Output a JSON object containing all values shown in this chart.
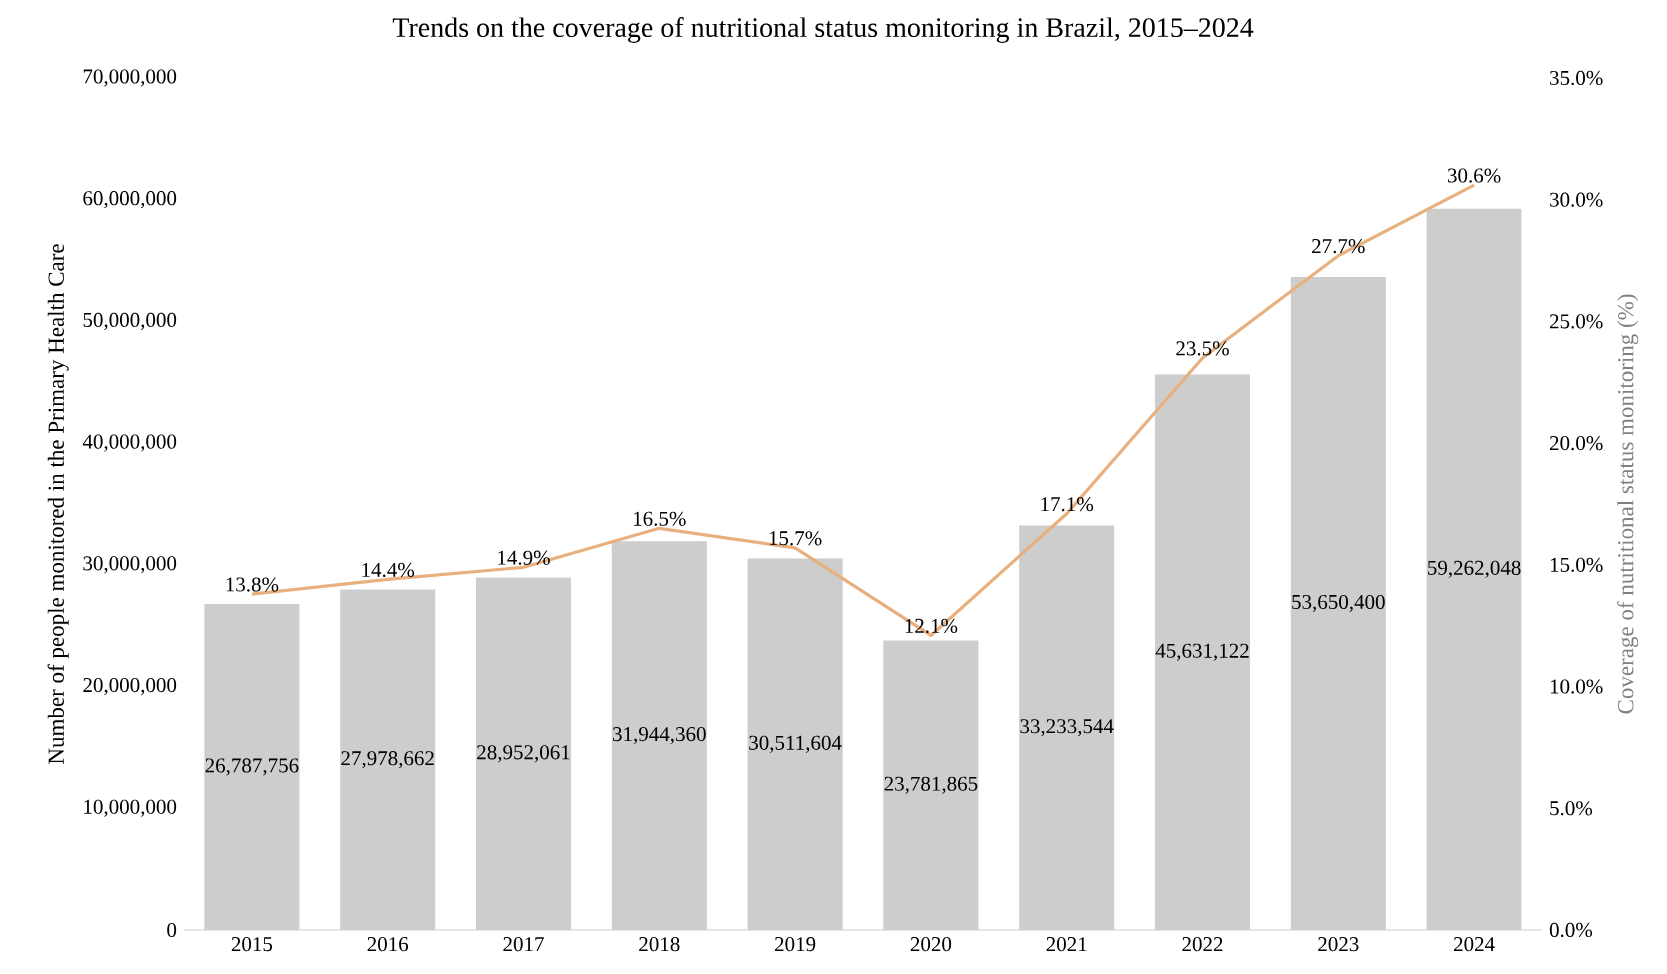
{
  "chart_data": {
    "type": "bar",
    "title": "Trends on the coverage of nutritional status monitoring in Brazil, 2015–2024",
    "categories": [
      "2015",
      "2016",
      "2017",
      "2018",
      "2019",
      "2020",
      "2021",
      "2022",
      "2023",
      "2024"
    ],
    "ylabel": "Number of people monitored in the Primary Health Care",
    "y2label": "Coverage of nutritional status monitoring (%)",
    "ylim": [
      0,
      70000000
    ],
    "yticks": [
      0,
      {
        "value": 10000000,
        "label": "10,000,000"
      },
      {
        "value": 20000000,
        "label": "20,000,000"
      },
      {
        "value": 30000000,
        "label": "30,000,000"
      },
      {
        "value": 40000000,
        "label": "40,000,000"
      },
      {
        "value": 50000000,
        "label": "50,000,000"
      },
      {
        "value": 60000000,
        "label": "60,000,000"
      },
      {
        "value": 70000000,
        "label": "70,000,000"
      }
    ],
    "y2lim": [
      0,
      35
    ],
    "y2ticks": [
      {
        "value": 0,
        "label": "0.0%"
      },
      {
        "value": 5,
        "label": "5.0%"
      },
      {
        "value": 10,
        "label": "10.0%"
      },
      {
        "value": 15,
        "label": "15.0%"
      },
      {
        "value": 20,
        "label": "20.0%"
      },
      {
        "value": 25,
        "label": "25.0%"
      },
      {
        "value": 30,
        "label": "30.0%"
      },
      {
        "value": 35,
        "label": "35.0%"
      }
    ],
    "series": [
      {
        "color": "#cdcdcd",
        "values": [
          26787756,
          27978662,
          28952061,
          31944360,
          30511604,
          23781865,
          33233544,
          45631122,
          53650400,
          59262048
        ],
        "value_labels": [
          "26,787,756",
          "27,978,662",
          "28,952,061",
          "31,944,360",
          "30,511,604",
          "23,781,865",
          "33,233,544",
          "45,631,122",
          "53,650,400",
          "59,262,048"
        ]
      },
      {
        "type": "line",
        "axis": "y2",
        "color": "#e8b07f",
        "values": [
          13.8,
          14.4,
          14.9,
          16.5,
          15.7,
          12.1,
          17.1,
          23.5,
          27.7,
          30.6
        ],
        "value_labels": [
          "13.8%",
          "14.4%",
          "14.9%",
          "16.5%",
          "15.7%",
          "12.1%",
          "17.1%",
          "23.5%",
          "27.7%",
          "30.6%"
        ]
      }
    ]
  }
}
